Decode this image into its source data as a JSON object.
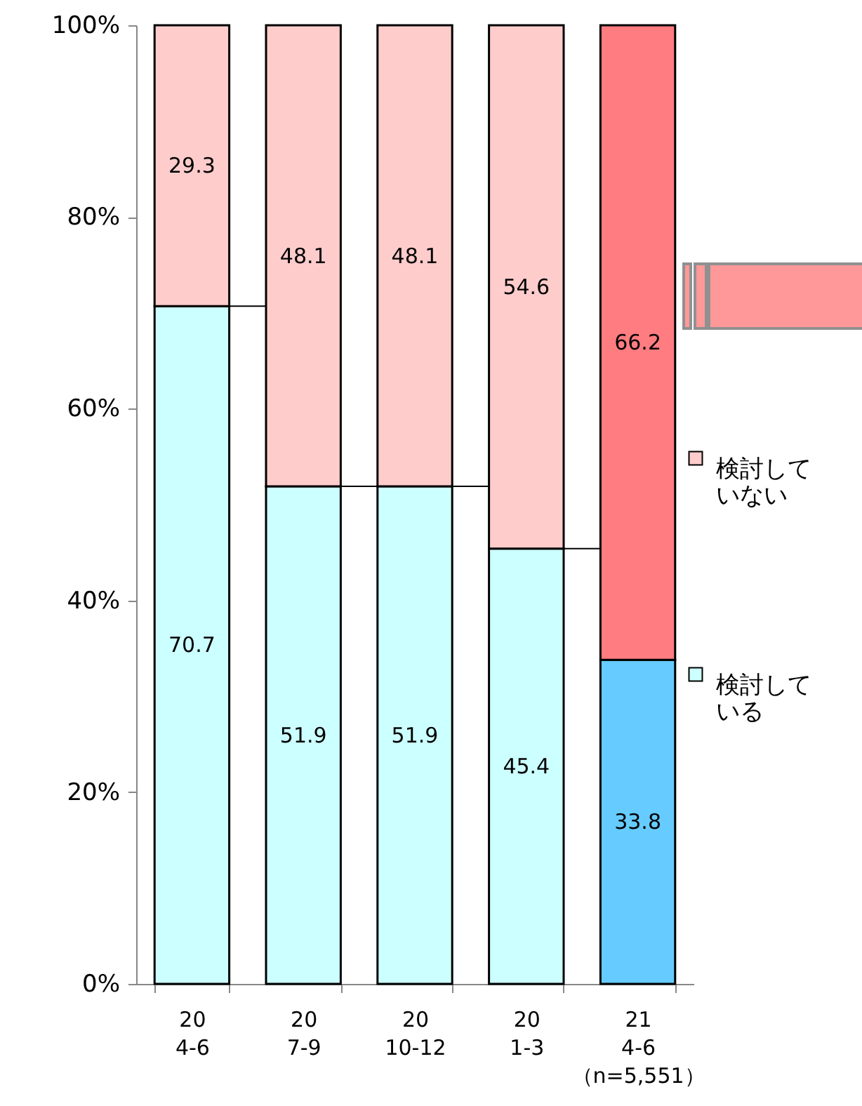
{
  "chart_data": {
    "type": "bar",
    "stacked": true,
    "categories": [
      "20\n4-6",
      "20\n7-9",
      "20\n10-12",
      "20\n1-3",
      "21\n4-6\n（n=5,551）"
    ],
    "series": [
      {
        "name": "検討している",
        "color": "#ccffff",
        "colors": [
          "#ccffff",
          "#ccffff",
          "#ccffff",
          "#ccffff",
          "#66ccff"
        ],
        "values": [
          70.7,
          51.9,
          51.9,
          45.4,
          33.8
        ]
      },
      {
        "name": "検討していない",
        "color": "#ffcccc",
        "colors": [
          "#ffcccc",
          "#ffcccc",
          "#ffcccc",
          "#ffcccc",
          "#ff7c80"
        ],
        "values": [
          29.3,
          48.1,
          48.1,
          54.6,
          66.2
        ]
      }
    ],
    "ylim": [
      0,
      100
    ],
    "yticks": [
      {
        "value": 0,
        "label": "0%"
      },
      {
        "value": 20,
        "label": "20%"
      },
      {
        "value": 40,
        "label": "40%"
      },
      {
        "value": 60,
        "label": "60%"
      },
      {
        "value": 80,
        "label": "80%"
      },
      {
        "value": 100,
        "label": "100%"
      }
    ],
    "data_labels": true,
    "legend": "right",
    "grid": false
  }
}
